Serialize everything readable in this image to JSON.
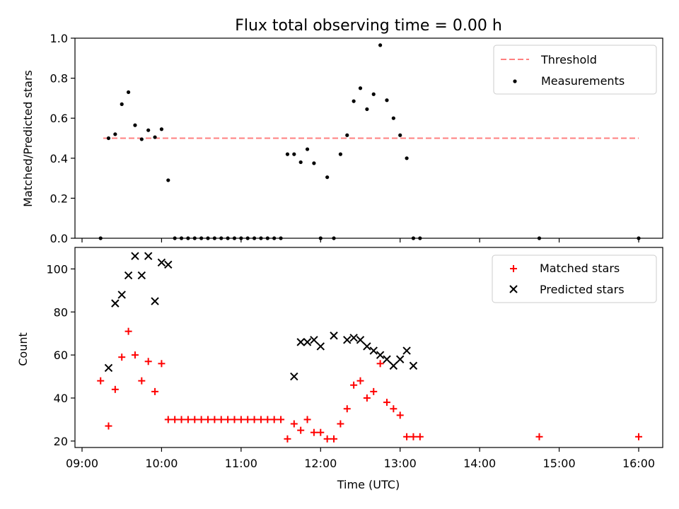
{
  "chart_data": [
    {
      "type": "scatter",
      "title": "Flux total observing time = 0.00 h",
      "ylabel": "Matched/Predicted stars",
      "xlabel": "",
      "xlim": [
        "09:00",
        "16:00"
      ],
      "ylim": [
        0,
        1.0
      ],
      "y_ticks": [
        "0.0",
        "0.2",
        "0.4",
        "0.6",
        "0.8",
        "1.0"
      ],
      "threshold": {
        "name": "Threshold",
        "value": 0.5,
        "x": [
          "09:16",
          "16:00"
        ],
        "color": "#ff7f7f"
      },
      "legend": {
        "position": "top-right",
        "items": [
          "Threshold",
          "Measurements"
        ]
      },
      "series": [
        {
          "name": "Measurements",
          "color": "#000000",
          "marker": "dot",
          "x": [
            "09:14",
            "09:20",
            "09:25",
            "09:30",
            "09:35",
            "09:40",
            "09:45",
            "09:50",
            "09:55",
            "10:00",
            "10:05",
            "10:10",
            "10:15",
            "10:20",
            "10:25",
            "10:30",
            "10:35",
            "10:40",
            "10:45",
            "10:50",
            "10:55",
            "11:00",
            "11:05",
            "11:10",
            "11:15",
            "11:20",
            "11:25",
            "11:30",
            "11:35",
            "11:40",
            "11:45",
            "11:50",
            "11:55",
            "12:00",
            "12:05",
            "12:10",
            "12:15",
            "12:20",
            "12:25",
            "12:30",
            "12:35",
            "12:40",
            "12:45",
            "12:50",
            "12:55",
            "13:00",
            "13:05",
            "13:10",
            "13:15",
            "14:45",
            "16:00"
          ],
          "y": [
            0.0,
            0.5,
            0.52,
            0.67,
            0.73,
            0.565,
            0.495,
            0.54,
            0.505,
            0.545,
            0.29,
            0.0,
            0.0,
            0.0,
            0.0,
            0.0,
            0.0,
            0.0,
            0.0,
            0.0,
            0.0,
            0.0,
            0.0,
            0.0,
            0.0,
            0.0,
            0.0,
            0.0,
            0.42,
            0.42,
            0.38,
            0.445,
            0.375,
            0.0,
            0.305,
            0.0,
            0.42,
            0.515,
            0.685,
            0.75,
            0.645,
            0.72,
            0.965,
            0.69,
            0.6,
            0.515,
            0.4,
            0.0,
            0.0,
            0.0,
            0.0
          ]
        }
      ]
    },
    {
      "type": "scatter",
      "title": "",
      "ylabel": "Count",
      "xlabel": "Time (UTC)",
      "xlim": [
        "09:00",
        "16:00"
      ],
      "ylim": [
        17,
        110
      ],
      "y_ticks": [
        "20",
        "40",
        "60",
        "80",
        "100"
      ],
      "x_ticks": [
        "09:00",
        "10:00",
        "11:00",
        "12:00",
        "13:00",
        "14:00",
        "15:00",
        "16:00"
      ],
      "legend": {
        "position": "top-right",
        "items": [
          "Matched stars",
          "Predicted stars"
        ]
      },
      "series": [
        {
          "name": "Matched stars",
          "color": "#ff0000",
          "marker": "plus",
          "x": [
            "09:14",
            "09:20",
            "09:25",
            "09:30",
            "09:35",
            "09:40",
            "09:45",
            "09:50",
            "09:55",
            "10:00",
            "10:05",
            "10:10",
            "10:15",
            "10:20",
            "10:25",
            "10:30",
            "10:35",
            "10:40",
            "10:45",
            "10:50",
            "10:55",
            "11:00",
            "11:05",
            "11:10",
            "11:15",
            "11:20",
            "11:25",
            "11:30",
            "11:35",
            "11:40",
            "11:45",
            "11:50",
            "11:55",
            "12:00",
            "12:05",
            "12:10",
            "12:15",
            "12:20",
            "12:25",
            "12:30",
            "12:35",
            "12:40",
            "12:45",
            "12:50",
            "12:55",
            "13:00",
            "13:05",
            "13:10",
            "13:15",
            "14:45",
            "16:00"
          ],
          "y": [
            48,
            27,
            44,
            59,
            71,
            60,
            48,
            57,
            43,
            56,
            30,
            30,
            30,
            30,
            30,
            30,
            30,
            30,
            30,
            30,
            30,
            30,
            30,
            30,
            30,
            30,
            30,
            30,
            21,
            28,
            25,
            30,
            24,
            24,
            21,
            21,
            28,
            35,
            46,
            48,
            40,
            43,
            56,
            38,
            35,
            32,
            22,
            22,
            22,
            22,
            22
          ]
        },
        {
          "name": "Predicted stars",
          "color": "#000000",
          "marker": "x",
          "x": [
            "09:20",
            "09:25",
            "09:30",
            "09:35",
            "09:40",
            "09:45",
            "09:50",
            "09:55",
            "10:00",
            "10:05",
            "11:40",
            "11:45",
            "11:50",
            "11:55",
            "12:00",
            "12:10",
            "12:20",
            "12:25",
            "12:30",
            "12:35",
            "12:40",
            "12:45",
            "12:50",
            "12:55",
            "13:00",
            "13:05",
            "13:10"
          ],
          "y": [
            54,
            84,
            88,
            97,
            106,
            97,
            106,
            85,
            103,
            102,
            50,
            66,
            66,
            67,
            64,
            69,
            67,
            68,
            67,
            64,
            62,
            60,
            58,
            55,
            58,
            62,
            55
          ]
        }
      ]
    }
  ]
}
